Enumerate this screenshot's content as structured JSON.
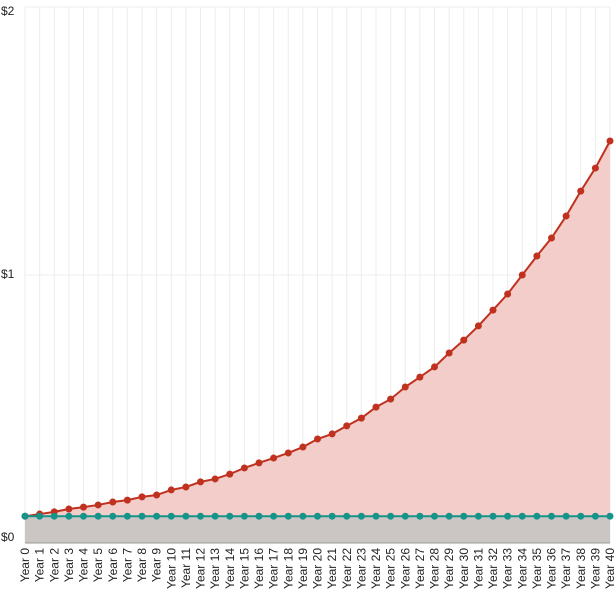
{
  "chart_data": {
    "type": "area",
    "categories": [
      "Year 0",
      "Year 1",
      "Year 2",
      "Year 3",
      "Year 4",
      "Year 5",
      "Year 6",
      "Year 7",
      "Year 8",
      "Year 9",
      "Year 10",
      "Year 11",
      "Year 12",
      "Year 13",
      "Year 14",
      "Year 15",
      "Year 16",
      "Year 17",
      "Year 18",
      "Year 19",
      "Year 20",
      "Year 21",
      "Year 22",
      "Year 23",
      "Year 24",
      "Year 25",
      "Year 26",
      "Year 27",
      "Year 28",
      "Year 29",
      "Year 30",
      "Year 31",
      "Year 32",
      "Year 33",
      "Year 34",
      "Year 35",
      "Year 36",
      "Year 37",
      "Year 38",
      "Year 39",
      "Year 40"
    ],
    "series": [
      {
        "color": "#c0311f",
        "fill": "#f2cdc9",
        "values": [
          0.1,
          0.108,
          0.116,
          0.127,
          0.134,
          0.142,
          0.153,
          0.16,
          0.172,
          0.179,
          0.198,
          0.209,
          0.228,
          0.239,
          0.257,
          0.28,
          0.299,
          0.317,
          0.336,
          0.358,
          0.388,
          0.407,
          0.437,
          0.466,
          0.507,
          0.537,
          0.582,
          0.619,
          0.657,
          0.709,
          0.757,
          0.81,
          0.869,
          0.929,
          1.0,
          1.071,
          1.138,
          1.22,
          1.313,
          1.399,
          1.5
        ]
      },
      {
        "color": "#17948a",
        "fill": "#cbc6c4",
        "values": [
          0.1,
          0.1,
          0.1,
          0.1,
          0.1,
          0.1,
          0.1,
          0.1,
          0.1,
          0.1,
          0.1,
          0.1,
          0.1,
          0.1,
          0.1,
          0.1,
          0.1,
          0.1,
          0.1,
          0.1,
          0.1,
          0.1,
          0.1,
          0.1,
          0.1,
          0.1,
          0.1,
          0.1,
          0.1,
          0.1,
          0.1,
          0.1,
          0.1,
          0.1,
          0.1,
          0.1,
          0.1,
          0.1,
          0.1,
          0.1,
          0.1
        ]
      }
    ],
    "ylim": [
      0,
      2
    ],
    "yticks": [
      {
        "value": 0,
        "label": "$0"
      },
      {
        "value": 1,
        "label": "$1"
      },
      {
        "value": 2,
        "label": "$2"
      }
    ],
    "grid": true
  }
}
